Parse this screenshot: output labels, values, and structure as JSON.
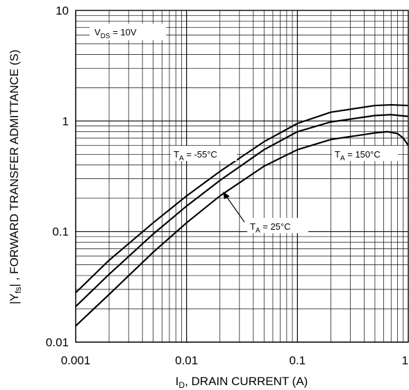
{
  "chart_data": {
    "type": "line",
    "title": "",
    "xlabel": "I_D, DRAIN CURRENT (A)",
    "ylabel": "|Y_fs|, FORWARD TRANSFER ADMITTANCE (S)",
    "xscale": "log",
    "yscale": "log",
    "xlim": [
      0.001,
      1
    ],
    "ylim": [
      0.01,
      10
    ],
    "grid": true,
    "x_tick_labels": [
      "0.001",
      "0.01",
      "0.1",
      "1"
    ],
    "y_tick_labels": [
      "0.01",
      "0.1",
      "1",
      "10"
    ],
    "series": [
      {
        "name": "T_A = -55°C",
        "x": [
          0.001,
          0.002,
          0.005,
          0.01,
          0.02,
          0.05,
          0.1,
          0.2,
          0.5,
          0.7,
          1.0
        ],
        "y": [
          0.028,
          0.055,
          0.12,
          0.21,
          0.35,
          0.65,
          0.95,
          1.2,
          1.38,
          1.4,
          1.38
        ]
      },
      {
        "name": "T_A = 25°C",
        "x": [
          0.001,
          0.002,
          0.005,
          0.01,
          0.02,
          0.05,
          0.1,
          0.2,
          0.5,
          0.7,
          1.0
        ],
        "y": [
          0.021,
          0.041,
          0.095,
          0.17,
          0.29,
          0.55,
          0.8,
          0.98,
          1.12,
          1.14,
          1.1
        ]
      },
      {
        "name": "T_A = 150°C",
        "x": [
          0.001,
          0.002,
          0.005,
          0.01,
          0.02,
          0.05,
          0.1,
          0.2,
          0.5,
          0.65,
          0.8,
          0.9,
          1.0
        ],
        "y": [
          0.014,
          0.027,
          0.065,
          0.12,
          0.21,
          0.39,
          0.55,
          0.68,
          0.78,
          0.8,
          0.77,
          0.7,
          0.6
        ]
      }
    ],
    "annotations": [
      {
        "id": "vds",
        "label": "V_DS = 10V"
      },
      {
        "id": "t55",
        "label": "T_A = -55°C"
      },
      {
        "id": "t25",
        "label": "T_A = 25°C"
      },
      {
        "id": "t150",
        "label": "T_A = 150°C"
      }
    ]
  }
}
